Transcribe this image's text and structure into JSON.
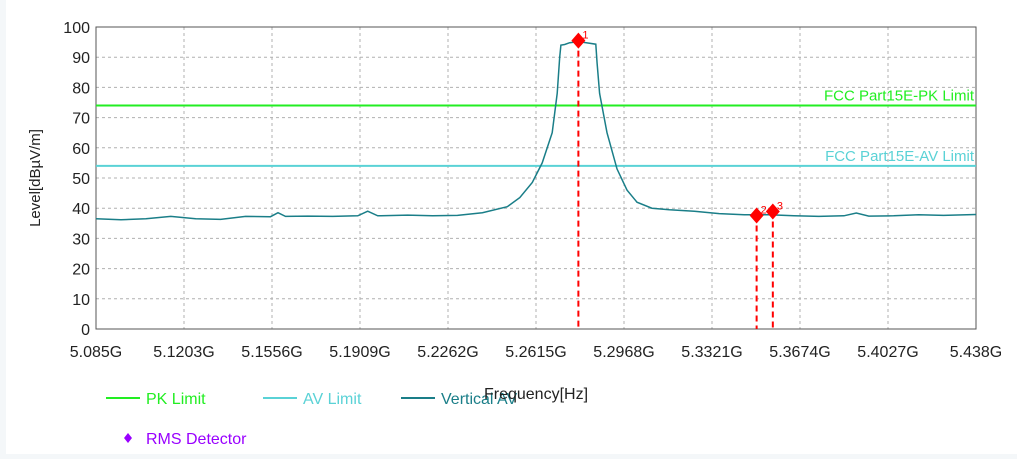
{
  "chart_data": {
    "type": "line",
    "title": "",
    "xlabel": "Frequency[Hz]",
    "ylabel": "Level[dBµV/m]",
    "xlim": [
      5.085,
      5.438
    ],
    "ylim": [
      0,
      100
    ],
    "grid": true,
    "x_ticks": [
      5.085,
      5.1203,
      5.1556,
      5.1909,
      5.2262,
      5.2615,
      5.2968,
      5.3321,
      5.3674,
      5.4027,
      5.438
    ],
    "x_tick_labels": [
      "5.085G",
      "5.1203G",
      "5.1556G",
      "5.1909G",
      "5.2262G",
      "5.2615G",
      "5.2968G",
      "5.3321G",
      "5.3674G",
      "5.4027G",
      "5.438G"
    ],
    "y_ticks": [
      0,
      10,
      20,
      30,
      40,
      50,
      60,
      70,
      80,
      90,
      100
    ],
    "y_tick_labels": [
      "0",
      "10",
      "20",
      "30",
      "40",
      "50",
      "60",
      "70",
      "80",
      "90",
      "100"
    ],
    "limit_lines": [
      {
        "name": "FCC Part15E-PK Limit",
        "value": 74,
        "color": "#22ee22"
      },
      {
        "name": "FCC Part15E-AV Limit",
        "value": 54,
        "color": "#5ad2d6"
      }
    ],
    "series": [
      {
        "name": "Vertical AV",
        "color": "#1a7e88",
        "x": [
          5.085,
          5.095,
          5.105,
          5.115,
          5.125,
          5.135,
          5.145,
          5.155,
          5.158,
          5.161,
          5.17,
          5.18,
          5.19,
          5.194,
          5.198,
          5.21,
          5.22,
          5.23,
          5.24,
          5.25,
          5.255,
          5.26,
          5.264,
          5.268,
          5.27,
          5.271,
          5.2715,
          5.273,
          5.275,
          5.277,
          5.28,
          5.283,
          5.2855,
          5.286,
          5.287,
          5.29,
          5.294,
          5.298,
          5.302,
          5.308,
          5.315,
          5.325,
          5.335,
          5.345,
          5.355,
          5.365,
          5.375,
          5.385,
          5.39,
          5.395,
          5.405,
          5.415,
          5.425,
          5.438
        ],
        "values": [
          36.5,
          36.2,
          36.5,
          37.3,
          36.5,
          36.3,
          37.3,
          37.2,
          38.5,
          37.3,
          37.4,
          37.3,
          37.5,
          39.0,
          37.5,
          37.7,
          37.5,
          37.6,
          38.5,
          40.5,
          43.5,
          48.5,
          55.0,
          65.0,
          78.0,
          90.0,
          94.0,
          94.2,
          94.8,
          95.0,
          95.0,
          94.6,
          94.3,
          88.0,
          78.0,
          65.0,
          53.0,
          46.0,
          42.0,
          40.0,
          39.5,
          39.0,
          38.2,
          37.8,
          37.8,
          37.5,
          37.3,
          37.5,
          38.4,
          37.4,
          37.5,
          37.8,
          37.6,
          37.9
        ]
      }
    ],
    "markers": [
      {
        "label": "1",
        "x": 5.2785,
        "y": 95.5,
        "color": "#ff0000"
      },
      {
        "label": "2",
        "x": 5.35,
        "y": 37.6,
        "color": "#ff0000"
      },
      {
        "label": "3",
        "x": 5.3565,
        "y": 38.9,
        "color": "#ff0000"
      }
    ],
    "legend": {
      "placement": "bottom-left",
      "items": [
        {
          "label": "PK Limit",
          "color": "#22ee22",
          "symbol": "line"
        },
        {
          "label": "AV Limit",
          "color": "#5ad2d6",
          "symbol": "line"
        },
        {
          "label": "Vertical AV",
          "color": "#1a7e88",
          "symbol": "line"
        },
        {
          "label": "RMS Detector",
          "color": "#9900ff",
          "symbol": "diamond"
        }
      ]
    }
  }
}
